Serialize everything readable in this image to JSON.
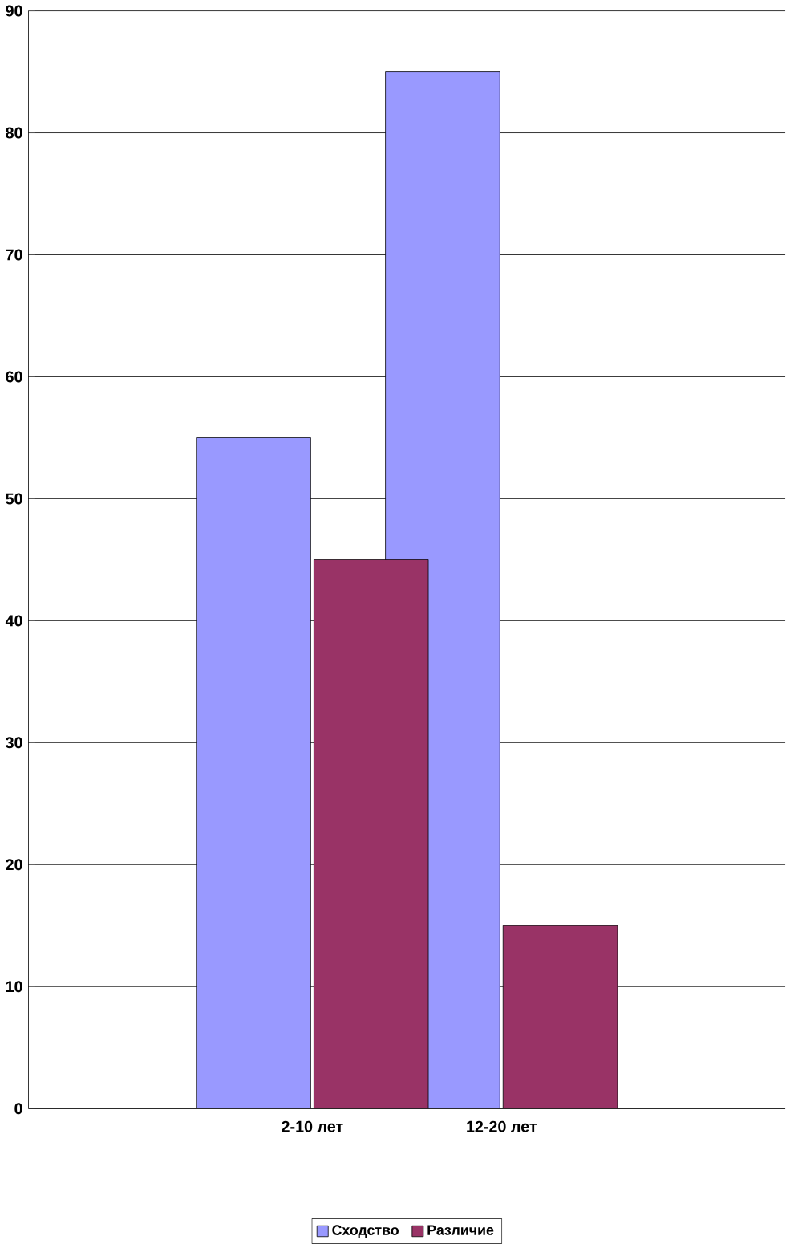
{
  "chart_data": {
    "type": "bar",
    "categories": [
      "2-10 лет",
      "12-20 лет"
    ],
    "series": [
      {
        "name": "Сходство",
        "color": "#9999ff",
        "values": [
          55,
          85
        ]
      },
      {
        "name": "Различие",
        "color": "#993366",
        "values": [
          45,
          15
        ]
      }
    ],
    "ylim": [
      0,
      90
    ],
    "yticks": [
      0,
      10,
      20,
      30,
      40,
      50,
      60,
      70,
      80,
      90
    ],
    "grid": "y",
    "legend": "bottom"
  }
}
